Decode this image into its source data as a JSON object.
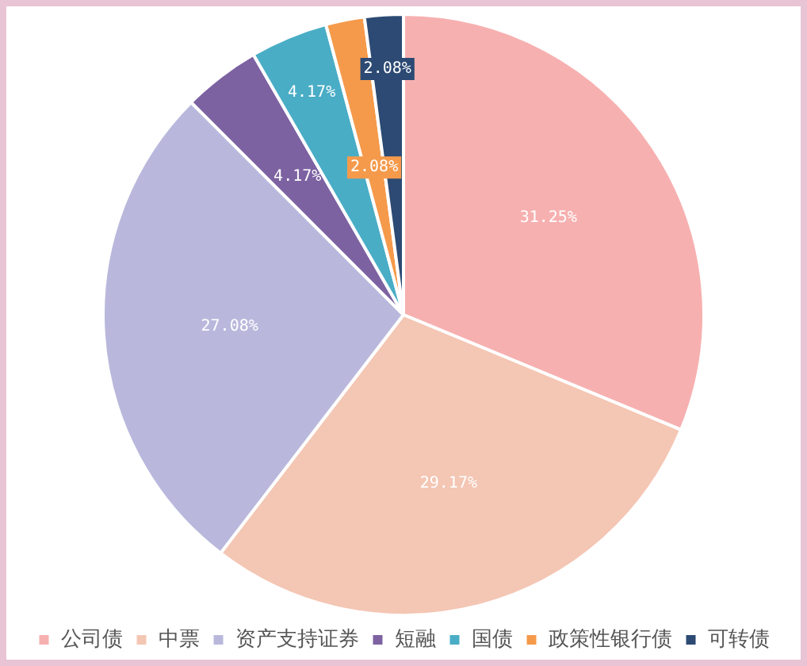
{
  "chart_data": {
    "type": "pie",
    "categories": [
      "公司债",
      "中票",
      "资产支持证券",
      "短融",
      "国债",
      "政策性银行债",
      "可转债"
    ],
    "values": [
      31.25,
      29.17,
      27.08,
      4.17,
      4.17,
      2.08,
      2.08
    ],
    "colors": [
      "#f7b0b0",
      "#f4c6b4",
      "#b9b8dc",
      "#7d62a2",
      "#4aadc6",
      "#f59a4b",
      "#2c4a73"
    ],
    "value_labels": [
      "31.25%",
      "29.17%",
      "27.08%",
      "4.17%",
      "4.17%",
      "2.08%",
      "2.08%"
    ],
    "legend": "bottom"
  }
}
